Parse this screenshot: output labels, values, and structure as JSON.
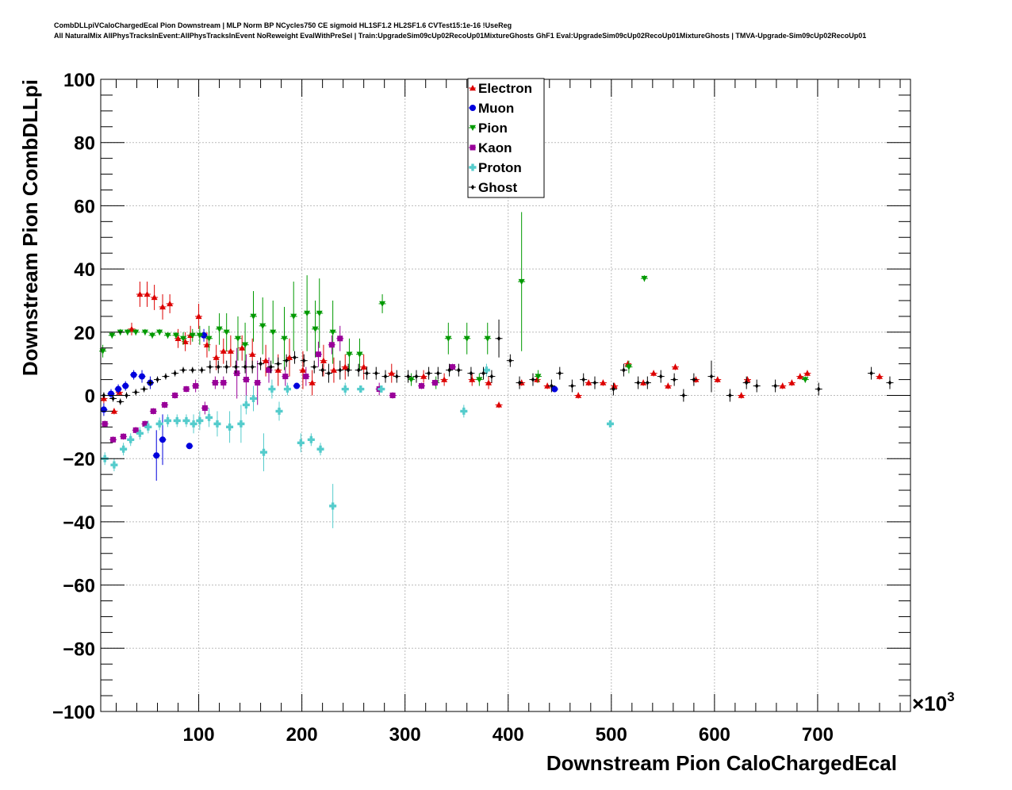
{
  "header": {
    "line1": "CombDLLpiVCaloChargedEcal Pion Downstream | MLP Norm BP NCycles750 CE sigmoid HL1SF1.2 HL2SF1.6 CVTest15:1e-16 !UseReg",
    "line2": "All NaturalMix AllPhysTracksInEvent:AllPhysTracksInEvent NoReweight EvalWithPreSel | Train:UpgradeSim09cUp02RecoUp01MixtureGhosts GhF1 Eval:UpgradeSim09cUp02RecoUp01MixtureGhosts | TMVA-Upgrade-Sim09cUp02RecoUp01"
  },
  "chart_data": {
    "type": "scatter",
    "xlabel": "Downstream Pion CaloChargedEcal",
    "ylabel": "Downstream Pion CombDLLpi",
    "x_exponent_label": "×10",
    "x_exponent_power": "3",
    "xlim": [
      5,
      790
    ],
    "ylim": [
      -100,
      100
    ],
    "x_ticks": [
      100,
      200,
      300,
      400,
      500,
      600,
      700
    ],
    "x_tick_labels": [
      "100",
      "200",
      "300",
      "400",
      "500",
      "600",
      "700"
    ],
    "y_ticks": [
      -100,
      -80,
      -60,
      -40,
      -20,
      0,
      20,
      40,
      60,
      80,
      100
    ],
    "y_tick_labels": [
      "−100",
      "−80",
      "−60",
      "−40",
      "−20",
      "0",
      "20",
      "40",
      "60",
      "80",
      "100"
    ],
    "grid": true,
    "legend_position": "top-center",
    "series": [
      {
        "name": "Electron",
        "color": "#dd0000",
        "marker": "triangle-up",
        "points": [
          [
            8,
            -1,
            1.5
          ],
          [
            18,
            -5,
            1
          ],
          [
            23,
            1,
            1
          ],
          [
            35,
            21,
            2
          ],
          [
            43,
            32,
            4
          ],
          [
            50,
            32,
            4
          ],
          [
            57,
            31,
            4
          ],
          [
            65,
            28,
            4
          ],
          [
            72,
            29,
            3
          ],
          [
            80,
            18,
            3
          ],
          [
            87,
            17,
            3
          ],
          [
            92,
            19,
            3
          ],
          [
            100,
            25,
            4
          ],
          [
            108,
            16,
            4
          ],
          [
            117,
            12,
            4
          ],
          [
            124,
            14,
            4
          ],
          [
            131,
            14,
            5
          ],
          [
            142,
            15,
            4
          ],
          [
            152,
            13,
            5
          ],
          [
            165,
            11,
            5
          ],
          [
            177,
            8,
            5
          ],
          [
            188,
            12,
            6
          ],
          [
            201,
            8,
            6
          ],
          [
            210,
            4,
            4
          ],
          [
            221,
            11,
            5
          ],
          [
            231,
            8,
            4
          ],
          [
            242,
            9,
            4
          ],
          [
            260,
            9,
            4
          ],
          [
            287,
            7,
            3
          ],
          [
            318,
            6,
            2
          ],
          [
            338,
            5,
            2
          ],
          [
            365,
            5,
            2
          ],
          [
            381,
            4,
            2
          ],
          [
            391,
            -3,
            1
          ],
          [
            413,
            4,
            1
          ],
          [
            428,
            5,
            1
          ],
          [
            438,
            3,
            1
          ],
          [
            468,
            0,
            1
          ],
          [
            478,
            4,
            1
          ],
          [
            492,
            4,
            1
          ],
          [
            503,
            3,
            1
          ],
          [
            516,
            10,
            1
          ],
          [
            531,
            4,
            1
          ],
          [
            541,
            7,
            1
          ],
          [
            555,
            3,
            1
          ],
          [
            562,
            9,
            1
          ],
          [
            582,
            5,
            1
          ],
          [
            603,
            5,
            1
          ],
          [
            626,
            0,
            1
          ],
          [
            632,
            5,
            1
          ],
          [
            666,
            3,
            1
          ],
          [
            675,
            4,
            1
          ],
          [
            683,
            6,
            1
          ],
          [
            690,
            7,
            1
          ],
          [
            760,
            6,
            1
          ]
        ]
      },
      {
        "name": "Muon",
        "color": "#0000dd",
        "marker": "circle",
        "points": [
          [
            8,
            -4.5,
            2
          ],
          [
            15,
            0.5,
            1.5
          ],
          [
            22,
            2,
            1.5
          ],
          [
            29,
            3,
            1.5
          ],
          [
            37,
            6.5,
            1.5
          ],
          [
            45,
            6,
            2
          ],
          [
            53,
            4,
            2
          ],
          [
            59,
            -19,
            8
          ],
          [
            65,
            -14,
            8
          ],
          [
            91,
            -16,
            1
          ],
          [
            105,
            19,
            2
          ],
          [
            195,
            3,
            1
          ],
          [
            445,
            2,
            1
          ]
        ]
      },
      {
        "name": "Pion",
        "color": "#009900",
        "marker": "triangle-down",
        "points": [
          [
            7,
            14,
            2
          ],
          [
            16,
            19,
            1
          ],
          [
            24,
            20,
            1
          ],
          [
            31,
            20,
            1
          ],
          [
            39,
            20,
            1
          ],
          [
            48,
            20,
            1
          ],
          [
            55,
            19,
            1
          ],
          [
            62,
            20,
            1
          ],
          [
            70,
            19,
            1
          ],
          [
            78,
            19,
            1
          ],
          [
            85,
            18,
            2
          ],
          [
            94,
            19,
            2
          ],
          [
            101,
            19,
            3
          ],
          [
            110,
            18,
            4
          ],
          [
            120,
            21,
            5
          ],
          [
            127,
            20,
            6
          ],
          [
            138,
            18,
            7
          ],
          [
            145,
            16,
            7
          ],
          [
            153,
            25,
            8
          ],
          [
            162,
            22,
            9
          ],
          [
            172,
            20,
            10
          ],
          [
            183,
            18,
            10
          ],
          [
            192,
            25,
            11
          ],
          [
            205,
            26,
            12
          ],
          [
            213,
            21,
            9
          ],
          [
            217,
            26,
            11
          ],
          [
            230,
            20,
            10
          ],
          [
            246,
            13,
            5
          ],
          [
            256,
            13,
            5
          ],
          [
            278,
            29,
            3
          ],
          [
            306,
            5,
            2
          ],
          [
            330,
            4,
            2
          ],
          [
            342,
            18,
            5
          ],
          [
            360,
            18,
            5
          ],
          [
            372,
            5,
            2
          ],
          [
            380,
            18,
            5
          ],
          [
            413,
            36,
            22
          ],
          [
            429,
            6,
            2
          ],
          [
            517,
            9,
            2
          ],
          [
            532,
            37,
            1
          ],
          [
            688,
            5,
            1
          ]
        ]
      },
      {
        "name": "Kaon",
        "color": "#990099",
        "marker": "square",
        "points": [
          [
            9,
            -9,
            1
          ],
          [
            17,
            -14,
            1
          ],
          [
            27,
            -13,
            1
          ],
          [
            39,
            -11,
            1
          ],
          [
            48,
            -9,
            1
          ],
          [
            56,
            -5,
            1
          ],
          [
            67,
            -3,
            1
          ],
          [
            77,
            0,
            1
          ],
          [
            88,
            2,
            1
          ],
          [
            97,
            3,
            2
          ],
          [
            106,
            -4,
            2
          ],
          [
            116,
            4,
            2
          ],
          [
            124,
            4,
            2
          ],
          [
            137,
            7,
            8
          ],
          [
            146,
            5,
            8
          ],
          [
            157,
            4,
            7
          ],
          [
            168,
            8,
            4
          ],
          [
            184,
            6,
            3
          ],
          [
            204,
            6,
            3
          ],
          [
            216,
            13,
            4
          ],
          [
            229,
            16,
            3
          ],
          [
            237,
            18,
            4
          ],
          [
            275,
            2,
            2
          ],
          [
            288,
            0,
            1
          ],
          [
            316,
            3,
            1
          ],
          [
            329,
            4,
            1
          ],
          [
            346,
            9,
            1
          ]
        ]
      },
      {
        "name": "Proton",
        "color": "#55cccc",
        "marker": "cross",
        "points": [
          [
            9,
            -20,
            2
          ],
          [
            18,
            -22,
            2
          ],
          [
            27,
            -17,
            2
          ],
          [
            34,
            -14,
            2
          ],
          [
            43,
            -12,
            2
          ],
          [
            51,
            -10,
            2
          ],
          [
            62,
            -9,
            2
          ],
          [
            70,
            -8,
            2
          ],
          [
            79,
            -8,
            2
          ],
          [
            88,
            -8,
            2
          ],
          [
            95,
            -9,
            3
          ],
          [
            101,
            -8,
            3
          ],
          [
            110,
            -7,
            3
          ],
          [
            118,
            -9,
            4
          ],
          [
            130,
            -10,
            5
          ],
          [
            141,
            -9,
            6
          ],
          [
            146,
            -3,
            3
          ],
          [
            153,
            -1,
            4
          ],
          [
            163,
            -18,
            6
          ],
          [
            171,
            2,
            3
          ],
          [
            178,
            -5,
            3
          ],
          [
            186,
            2,
            2
          ],
          [
            199,
            -15,
            3
          ],
          [
            209,
            -14,
            2
          ],
          [
            218,
            -17,
            2
          ],
          [
            230,
            -35,
            7
          ],
          [
            242,
            2,
            2
          ],
          [
            257,
            2,
            1
          ],
          [
            277,
            2,
            1
          ],
          [
            357,
            -5,
            2
          ],
          [
            379,
            8,
            2
          ],
          [
            499,
            -9,
            1
          ]
        ]
      },
      {
        "name": "Ghost",
        "color": "#000000",
        "marker": "diamond",
        "points": [
          [
            8,
            0,
            1
          ],
          [
            17,
            -1,
            1
          ],
          [
            24,
            -2,
            1
          ],
          [
            30,
            0,
            1
          ],
          [
            39,
            1,
            1
          ],
          [
            47,
            2,
            1
          ],
          [
            53,
            4,
            1
          ],
          [
            60,
            5,
            1
          ],
          [
            68,
            6,
            1
          ],
          [
            77,
            7,
            1
          ],
          [
            85,
            8,
            1
          ],
          [
            94,
            8,
            1
          ],
          [
            103,
            8,
            1
          ],
          [
            111,
            9,
            2
          ],
          [
            119,
            9,
            2
          ],
          [
            127,
            9,
            2
          ],
          [
            136,
            9,
            2
          ],
          [
            145,
            9,
            2
          ],
          [
            152,
            9,
            2
          ],
          [
            160,
            10,
            2
          ],
          [
            170,
            9,
            2
          ],
          [
            177,
            10,
            2
          ],
          [
            185,
            11,
            2
          ],
          [
            193,
            12,
            2
          ],
          [
            202,
            11,
            2
          ],
          [
            212,
            9,
            2
          ],
          [
            220,
            8,
            2
          ],
          [
            226,
            7,
            3
          ],
          [
            237,
            8,
            3
          ],
          [
            245,
            8,
            2
          ],
          [
            255,
            8,
            2
          ],
          [
            263,
            7,
            2
          ],
          [
            272,
            7,
            2
          ],
          [
            281,
            6,
            2
          ],
          [
            292,
            6,
            2
          ],
          [
            303,
            6,
            2
          ],
          [
            311,
            6,
            2
          ],
          [
            323,
            7,
            2
          ],
          [
            332,
            7,
            2
          ],
          [
            343,
            8,
            2
          ],
          [
            352,
            8,
            2
          ],
          [
            364,
            7,
            2
          ],
          [
            376,
            7,
            2
          ],
          [
            384,
            6,
            2
          ],
          [
            391,
            18,
            6
          ],
          [
            402,
            11,
            2
          ],
          [
            411,
            4,
            2
          ],
          [
            424,
            5,
            2
          ],
          [
            442,
            3,
            2
          ],
          [
            450,
            7,
            2
          ],
          [
            462,
            3,
            2
          ],
          [
            473,
            5,
            2
          ],
          [
            484,
            4,
            2
          ],
          [
            502,
            2,
            2
          ],
          [
            512,
            8,
            2
          ],
          [
            526,
            4,
            2
          ],
          [
            535,
            4,
            2
          ],
          [
            548,
            6,
            2
          ],
          [
            561,
            5,
            2
          ],
          [
            570,
            0,
            2
          ],
          [
            580,
            5,
            2
          ],
          [
            597,
            6,
            5
          ],
          [
            615,
            0,
            2
          ],
          [
            631,
            4,
            2
          ],
          [
            641,
            3,
            2
          ],
          [
            659,
            3,
            2
          ],
          [
            701,
            2,
            2
          ],
          [
            752,
            7,
            2
          ],
          [
            770,
            4,
            2
          ]
        ]
      }
    ]
  }
}
